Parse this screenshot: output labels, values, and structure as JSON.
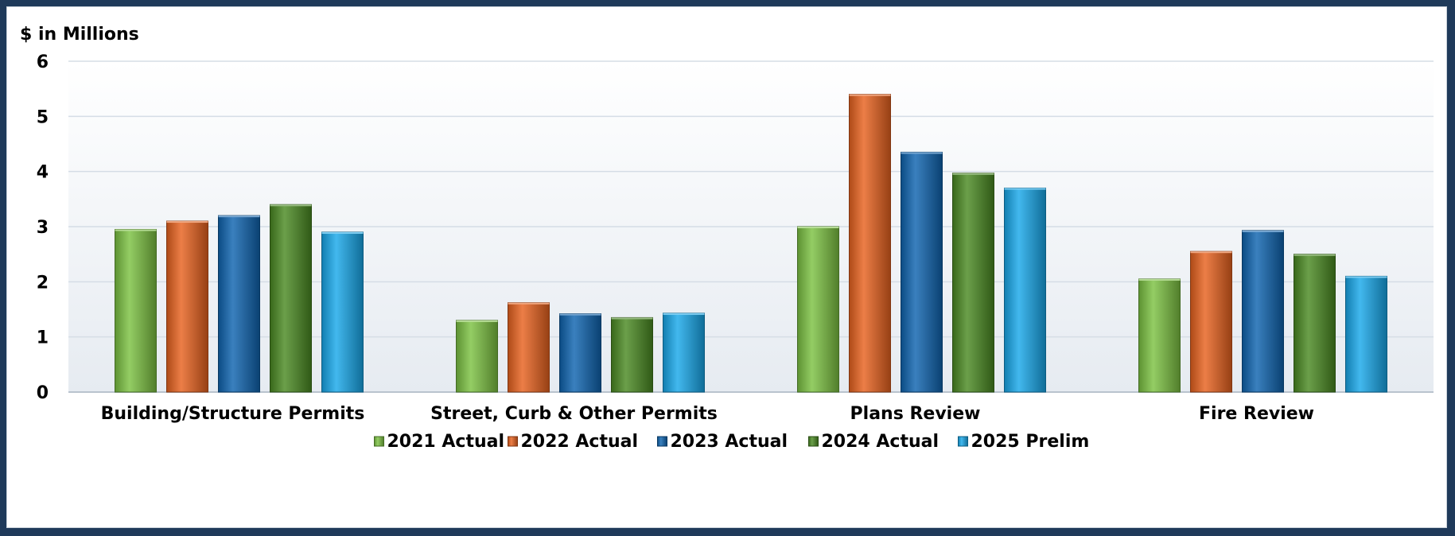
{
  "unit_label": "$ in Millions",
  "chart_data": {
    "type": "bar",
    "title": "",
    "ylabel": "$ in Millions",
    "xlabel": "",
    "ylim": [
      0,
      6
    ],
    "yticks": [
      0,
      1,
      2,
      3,
      4,
      5,
      6
    ],
    "grid": true,
    "legend_position": "bottom",
    "categories": [
      "Building/Structure Permits",
      "Street, Curb & Other Permits",
      "Plans Review",
      "Fire Review"
    ],
    "series": [
      {
        "name": "2021 Actual",
        "color": "#7cc242",
        "values": [
          2.95,
          1.3,
          3.0,
          2.05
        ]
      },
      {
        "name": "2022 Actual",
        "color": "#e8621e",
        "values": [
          3.1,
          1.62,
          5.4,
          2.55
        ]
      },
      {
        "name": "2023 Actual",
        "color": "#0f64b0",
        "values": [
          3.2,
          1.42,
          4.35,
          2.93
        ]
      },
      {
        "name": "2024 Actual",
        "color": "#4a8a22",
        "values": [
          3.4,
          1.35,
          3.97,
          2.5
        ]
      },
      {
        "name": "2025 Prelim",
        "color": "#18a8ea",
        "values": [
          2.9,
          1.43,
          3.7,
          2.1
        ]
      }
    ]
  }
}
